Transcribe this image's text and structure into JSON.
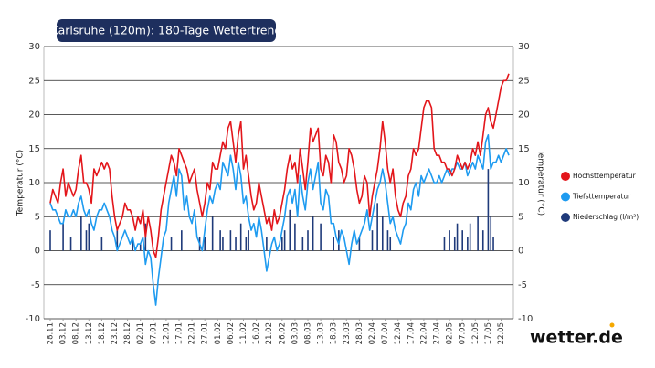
{
  "chart_data": {
    "type": "line",
    "title": "Karlsruhe (120m): 180-Tage Wettertrend",
    "y_label": "Temperatur (°C)",
    "y2_label": "Temperatur (°C)",
    "logo": "wetter.de",
    "ylim": [
      -10,
      30
    ],
    "yticks": [
      -10,
      -5,
      0,
      5,
      10,
      15,
      20,
      25,
      30
    ],
    "y2lim": [
      -10,
      30
    ],
    "y2ticks": [
      -10,
      -5,
      0,
      5,
      10,
      15,
      20,
      25,
      30
    ],
    "grid": true,
    "legend": "right",
    "categories": [
      "28.11",
      null,
      null,
      null,
      null,
      "03.12",
      null,
      null,
      null,
      null,
      "08.12",
      null,
      null,
      null,
      null,
      "13.12",
      null,
      null,
      null,
      null,
      "18.12",
      null,
      null,
      null,
      null,
      "23.12",
      null,
      null,
      null,
      null,
      "28.12",
      null,
      null,
      null,
      null,
      "02.01",
      null,
      null,
      null,
      null,
      "07.01",
      null,
      null,
      null,
      null,
      "12.01",
      null,
      null,
      null,
      null,
      "17.01",
      null,
      null,
      null,
      null,
      "22.01",
      null,
      null,
      null,
      null,
      "27.01",
      null,
      null,
      null,
      null,
      "01.02",
      null,
      null,
      null,
      null,
      "06.02",
      null,
      null,
      null,
      null,
      "11.02",
      null,
      null,
      null,
      null,
      "16.02",
      null,
      null,
      null,
      null,
      "21.02",
      null,
      null,
      null,
      null,
      "26.02",
      null,
      null,
      null,
      null,
      "03.03",
      null,
      null,
      null,
      null,
      "08.03",
      null,
      null,
      null,
      null,
      "13.03",
      null,
      null,
      null,
      null,
      "18.03",
      null,
      null,
      null,
      null,
      "23.03",
      null,
      null,
      null,
      null,
      "28.03",
      null,
      null,
      null,
      null,
      "02.04",
      null,
      null,
      null,
      null,
      "07.04",
      null,
      null,
      null,
      null,
      "12.04",
      null,
      null,
      null,
      null,
      "17.04",
      null,
      null,
      null,
      null,
      "22.04",
      null,
      null,
      null,
      null,
      "27.04",
      null,
      null,
      null,
      null,
      "02.05",
      null,
      null,
      null,
      null,
      "07.05",
      null,
      null,
      null,
      null,
      "12.05",
      null,
      null,
      null,
      null,
      "17.05",
      null,
      null,
      null,
      null,
      "22.05",
      null,
      null,
      null
    ],
    "series": [
      {
        "name": "Höchsttemperatur",
        "color": "#e3161b",
        "kind": "line",
        "values": [
          7,
          9,
          8,
          7,
          10,
          12,
          8,
          10,
          9,
          8,
          9,
          12,
          14,
          10,
          10,
          9,
          7,
          12,
          11,
          12,
          13,
          12,
          13,
          12,
          8,
          5,
          3,
          4,
          5,
          7,
          6,
          6,
          5,
          3,
          5,
          4,
          6,
          2,
          5,
          3,
          0,
          -1,
          2,
          6,
          8,
          10,
          12,
          14,
          13,
          11,
          15,
          14,
          13,
          12,
          10,
          11,
          12,
          9,
          7,
          5,
          7,
          10,
          9,
          13,
          12,
          12,
          14,
          16,
          15,
          18,
          19,
          16,
          13,
          17,
          19,
          12,
          14,
          11,
          8,
          6,
          7,
          10,
          8,
          6,
          4,
          5,
          3,
          6,
          4,
          5,
          7,
          9,
          12,
          14,
          12,
          13,
          10,
          15,
          12,
          9,
          13,
          18,
          16,
          17,
          18,
          12,
          11,
          14,
          13,
          10,
          17,
          16,
          13,
          12,
          10,
          11,
          15,
          14,
          12,
          9,
          7,
          8,
          11,
          10,
          5,
          8,
          10,
          12,
          15,
          19,
          16,
          12,
          10,
          12,
          8,
          6,
          5,
          7,
          8,
          11,
          12,
          15,
          14,
          15,
          18,
          21,
          22,
          22,
          21,
          15,
          14,
          14,
          13,
          13,
          12,
          12,
          11,
          12,
          14,
          13,
          12,
          13,
          12,
          13,
          15,
          14,
          16,
          14,
          17,
          20,
          21,
          19,
          18,
          20,
          22,
          24,
          25,
          25,
          26
        ]
      },
      {
        "name": "Tiefsttemperatur",
        "color": "#1e9bf0",
        "kind": "line",
        "values": [
          7,
          6,
          6,
          5,
          4,
          4,
          6,
          5,
          5,
          6,
          5,
          7,
          8,
          6,
          5,
          6,
          4,
          3,
          5,
          6,
          6,
          7,
          6,
          5,
          3,
          2,
          0,
          1,
          2,
          3,
          2,
          1,
          2,
          0,
          1,
          1,
          2,
          -2,
          0,
          -1,
          -5,
          -8,
          -4,
          -1,
          2,
          3,
          7,
          9,
          11,
          8,
          12,
          11,
          6,
          8,
          5,
          4,
          6,
          2,
          1,
          0,
          3,
          6,
          8,
          7,
          9,
          10,
          9,
          13,
          12,
          11,
          14,
          12,
          9,
          13,
          11,
          7,
          8,
          5,
          3,
          4,
          2,
          5,
          3,
          0,
          -3,
          -1,
          1,
          2,
          0,
          1,
          3,
          5,
          8,
          9,
          7,
          9,
          5,
          11,
          8,
          6,
          10,
          12,
          9,
          11,
          13,
          7,
          6,
          9,
          8,
          4,
          4,
          2,
          1,
          3,
          2,
          0,
          -2,
          1,
          3,
          1,
          2,
          3,
          4,
          6,
          3,
          5,
          7,
          9,
          10,
          12,
          10,
          7,
          4,
          5,
          3,
          2,
          1,
          3,
          4,
          7,
          6,
          9,
          10,
          8,
          11,
          10,
          11,
          12,
          11,
          10,
          10,
          11,
          10,
          11,
          12,
          11,
          12,
          12,
          13,
          12,
          12,
          13,
          11,
          12,
          13,
          12,
          14,
          13,
          12,
          16,
          17,
          12,
          13,
          13,
          14,
          13,
          14,
          15,
          14
        ]
      },
      {
        "name": "Niederschlag (l/m²)",
        "color": "#1f3a7a",
        "kind": "bar",
        "values": [
          3,
          0,
          0,
          0,
          0,
          4,
          0,
          0,
          2,
          0,
          0,
          0,
          5,
          0,
          3,
          4,
          0,
          0,
          0,
          0,
          2,
          0,
          0,
          0,
          0,
          0,
          3,
          0,
          0,
          0,
          0,
          0,
          2,
          0,
          0,
          1,
          0,
          4,
          0,
          0,
          0,
          0,
          0,
          0,
          0,
          0,
          0,
          2,
          0,
          0,
          0,
          3,
          0,
          0,
          0,
          0,
          0,
          0,
          2,
          0,
          2,
          0,
          0,
          5,
          0,
          0,
          3,
          2,
          0,
          0,
          3,
          0,
          2,
          0,
          4,
          0,
          2,
          3,
          0,
          0,
          0,
          0,
          0,
          0,
          2,
          0,
          0,
          0,
          0,
          0,
          2,
          3,
          0,
          6,
          0,
          4,
          0,
          0,
          2,
          0,
          3,
          0,
          5,
          0,
          0,
          4,
          0,
          0,
          0,
          0,
          2,
          0,
          3,
          0,
          0,
          0,
          0,
          0,
          0,
          0,
          2,
          0,
          0,
          0,
          0,
          3,
          0,
          7,
          0,
          5,
          0,
          3,
          2,
          0,
          0,
          0,
          0,
          0,
          0,
          0,
          0,
          0,
          0,
          0,
          0,
          0,
          0,
          0,
          0,
          0,
          0,
          0,
          0,
          2,
          0,
          3,
          0,
          2,
          4,
          0,
          3,
          0,
          2,
          4,
          0,
          0,
          5,
          0,
          3,
          0,
          12,
          5,
          2,
          0,
          0,
          0,
          0,
          0,
          0
        ]
      }
    ]
  }
}
